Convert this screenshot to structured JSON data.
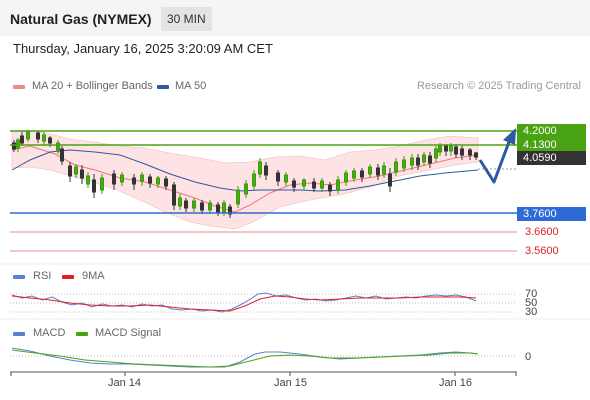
{
  "header": {
    "title": "Natural Gas (NYMEX)",
    "timeframe": "30 MIN"
  },
  "datetime": "Thursday, January 16, 2025 3:20:09 AM CET",
  "legend": {
    "bollinger": "MA 20 + Bollinger Bands",
    "ma50": "MA 50",
    "credit": "Research © 2025 Trading Central"
  },
  "levels": {
    "r2": "4.2000",
    "r1": "4.1300",
    "last": "4.0590",
    "s1": "3.7600",
    "s2": "3.6600",
    "s3": "3.5600"
  },
  "rsi_panel": {
    "label_rsi": "RSI",
    "label_9ma": "9MA",
    "l70": "70",
    "l50": "50",
    "l30": "30"
  },
  "macd_panel": {
    "label_macd": "MACD",
    "label_signal": "MACD Signal",
    "zero": "0"
  },
  "x_axis": {
    "d1": "Jan 14",
    "d2": "Jan 15",
    "d3": "Jan 16"
  },
  "colors": {
    "green": "#4aa312",
    "blue": "#2e6bd6",
    "red": "#e05050",
    "dark": "#333333",
    "arrow": "#2c5aa0"
  }
}
